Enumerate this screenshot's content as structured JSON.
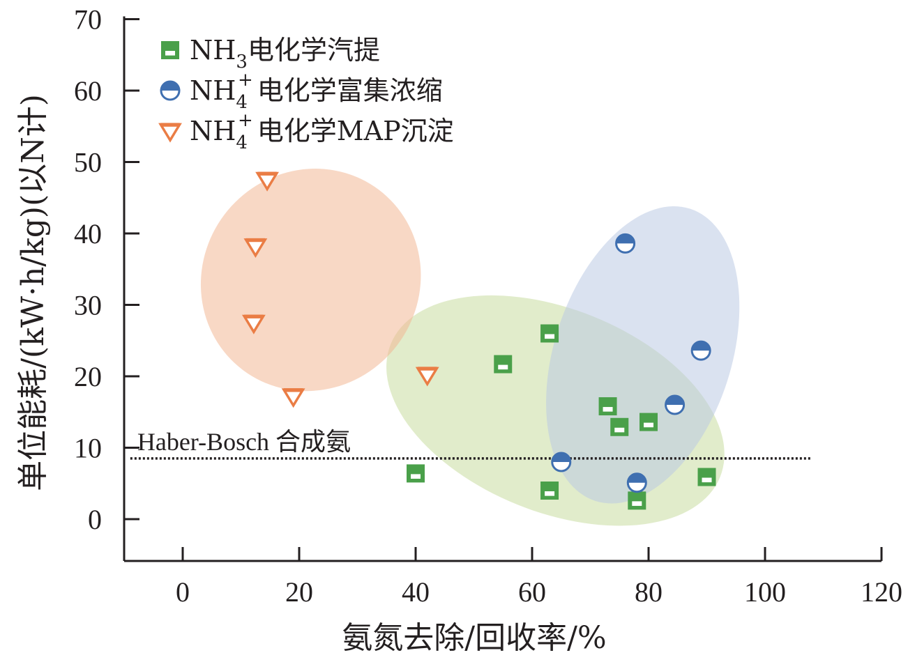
{
  "chart_data": {
    "type": "scatter",
    "xlabel": "氨氮去除/回收率/%",
    "ylabel": "单位能耗/(kW·h/kg)(以N计)",
    "xlim": [
      -10,
      120
    ],
    "ylim": [
      -6,
      70
    ],
    "xticks": [
      0,
      20,
      40,
      60,
      80,
      100,
      120
    ],
    "yticks": [
      0,
      10,
      20,
      30,
      40,
      50,
      60,
      70
    ],
    "grid": false,
    "legend_position": "top-left",
    "series": [
      {
        "name": "NH3电化学汽提",
        "legend": {
          "base": "NH",
          "sub": "3",
          "sup": "",
          "rest": "电化学汽提"
        },
        "marker": "square-half",
        "color": "#4aa04a",
        "fill_color": "#c9dca0",
        "points": [
          {
            "x": 40,
            "y": 6.4
          },
          {
            "x": 55,
            "y": 21.7
          },
          {
            "x": 63,
            "y": 26
          },
          {
            "x": 63,
            "y": 4
          },
          {
            "x": 73,
            "y": 15.8
          },
          {
            "x": 75,
            "y": 12.9
          },
          {
            "x": 78,
            "y": 2.6
          },
          {
            "x": 80,
            "y": 13.6
          },
          {
            "x": 90,
            "y": 5.9
          }
        ],
        "region": {
          "cx": 64,
          "cy": 15.2,
          "rx_data": 30.5,
          "ry_data": 14.2,
          "rotate": 22
        }
      },
      {
        "name": "NH4+电化学富集浓缩",
        "legend": {
          "base": "NH",
          "sub": "4",
          "sup": "+",
          "rest": "电化学富集浓缩"
        },
        "marker": "circle-half",
        "color": "#3f6fb0",
        "fill_color": "#bccbe3",
        "points": [
          {
            "x": 65,
            "y": 8
          },
          {
            "x": 76,
            "y": 38.6
          },
          {
            "x": 78,
            "y": 5.1
          },
          {
            "x": 84.5,
            "y": 16
          },
          {
            "x": 89,
            "y": 23.6
          }
        ],
        "region": {
          "cx": 79,
          "cy": 23,
          "rx_data": 15.2,
          "ry_data": 21.5,
          "rotate": 18
        }
      },
      {
        "name": "NH4+电化学MAP沉淀",
        "legend": {
          "base": "NH",
          "sub": "4",
          "sup": "+",
          "rest": "电化学MAP沉淀"
        },
        "marker": "triangle-down",
        "color": "#ea7d45",
        "fill_color": "#f3b896",
        "points": [
          {
            "x": 14.5,
            "y": 47.5
          },
          {
            "x": 12.5,
            "y": 38.2
          },
          {
            "x": 12.2,
            "y": 27.5
          },
          {
            "x": 19,
            "y": 17.2
          },
          {
            "x": 42,
            "y": 20.2
          }
        ],
        "region": {
          "cx": 22,
          "cy": 33.5,
          "rx_data": 18.6,
          "ry_data": 15.8,
          "rotate": 37
        }
      }
    ],
    "reference_line": {
      "y": 8.5,
      "x_range": [
        -9,
        108
      ],
      "label": "Haber-Bosch 合成氨",
      "style": "dotted"
    }
  }
}
